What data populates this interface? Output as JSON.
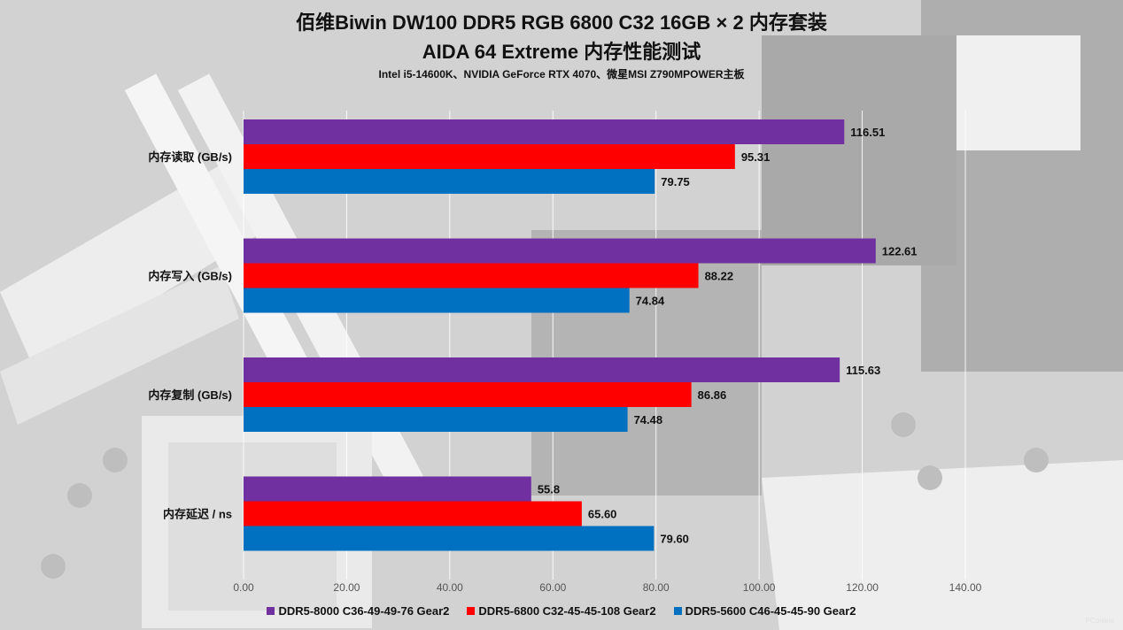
{
  "title": "佰维Biwin DW100 DDR5 RGB 6800 C32 16GB × 2 内存套装",
  "subtitle": "AIDA 64 Extreme 内存性能测试",
  "note": "Intel i5-14600K、NVIDIA GeForce RTX 4070、微星MSI Z790MPOWER主板",
  "watermark": "PConline",
  "chart_data": {
    "type": "bar",
    "orientation": "horizontal",
    "categories": [
      "内存读取 (GB/s)",
      "内存写入 (GB/s)",
      "内存复制 (GB/s)",
      "内存延迟 / ns"
    ],
    "series": [
      {
        "name": "DDR5-8000 C36-49-49-76 Gear2",
        "color": "#7030a0",
        "values": [
          116.51,
          122.61,
          115.63,
          55.8
        ],
        "labels": [
          "116.51",
          "122.61",
          "115.63",
          "55.8"
        ]
      },
      {
        "name": "DDR5-6800 C32-45-45-108 Gear2",
        "color": "#ff0000",
        "values": [
          95.31,
          88.22,
          86.86,
          65.6
        ],
        "labels": [
          "95.31",
          "88.22",
          "86.86",
          "65.60"
        ]
      },
      {
        "name": "DDR5-5600 C46-45-45-90 Gear2",
        "color": "#0070c0",
        "values": [
          79.75,
          74.84,
          74.48,
          79.6
        ],
        "labels": [
          "79.75",
          "74.84",
          "74.48",
          "79.60"
        ]
      }
    ],
    "xlim": [
      0,
      140
    ],
    "xticks": [
      "0.00",
      "20.00",
      "40.00",
      "60.00",
      "80.00",
      "100.00",
      "120.00",
      "140.00"
    ],
    "grid": true,
    "legend": "bottom"
  }
}
